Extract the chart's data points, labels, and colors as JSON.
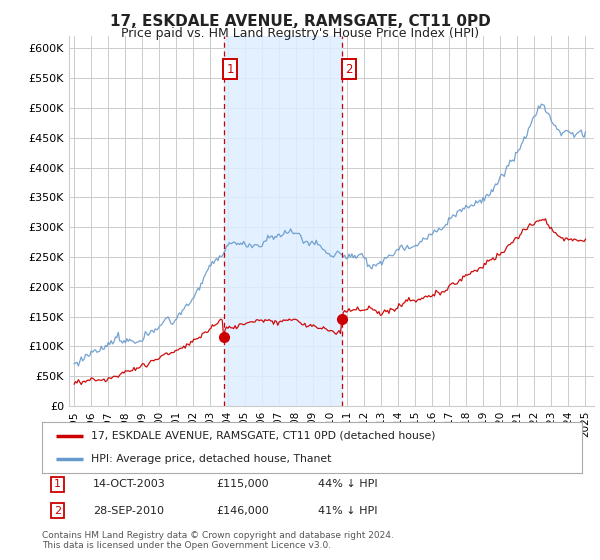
{
  "title": "17, ESKDALE AVENUE, RAMSGATE, CT11 0PD",
  "subtitle": "Price paid vs. HM Land Registry's House Price Index (HPI)",
  "title_fontsize": 11,
  "subtitle_fontsize": 9,
  "ylim": [
    0,
    620000
  ],
  "yticks": [
    0,
    50000,
    100000,
    150000,
    200000,
    250000,
    300000,
    350000,
    400000,
    450000,
    500000,
    550000,
    600000
  ],
  "ytick_labels": [
    "£0",
    "£50K",
    "£100K",
    "£150K",
    "£200K",
    "£250K",
    "£300K",
    "£350K",
    "£400K",
    "£450K",
    "£500K",
    "£550K",
    "£600K"
  ],
  "transaction1_date": 2003.79,
  "transaction2_date": 2010.74,
  "transaction1_price": 115000,
  "transaction2_price": 146000,
  "transaction1_label": "1",
  "transaction2_label": "2",
  "transaction1_text": "14-OCT-2003",
  "transaction2_text": "28-SEP-2010",
  "transaction1_pct": "44% ↓ HPI",
  "transaction2_pct": "41% ↓ HPI",
  "line_color_red": "#cc0000",
  "line_color_blue": "#6699cc",
  "vline_color": "#cc0000",
  "shade_color": "#ddeeff",
  "grid_color": "#cccccc",
  "background_color": "#ffffff",
  "legend_label_red": "17, ESKDALE AVENUE, RAMSGATE, CT11 0PD (detached house)",
  "legend_label_blue": "HPI: Average price, detached house, Thanet",
  "footer_text": "Contains HM Land Registry data © Crown copyright and database right 2024.\nThis data is licensed under the Open Government Licence v3.0.",
  "xstart": 1995,
  "xend": 2025
}
